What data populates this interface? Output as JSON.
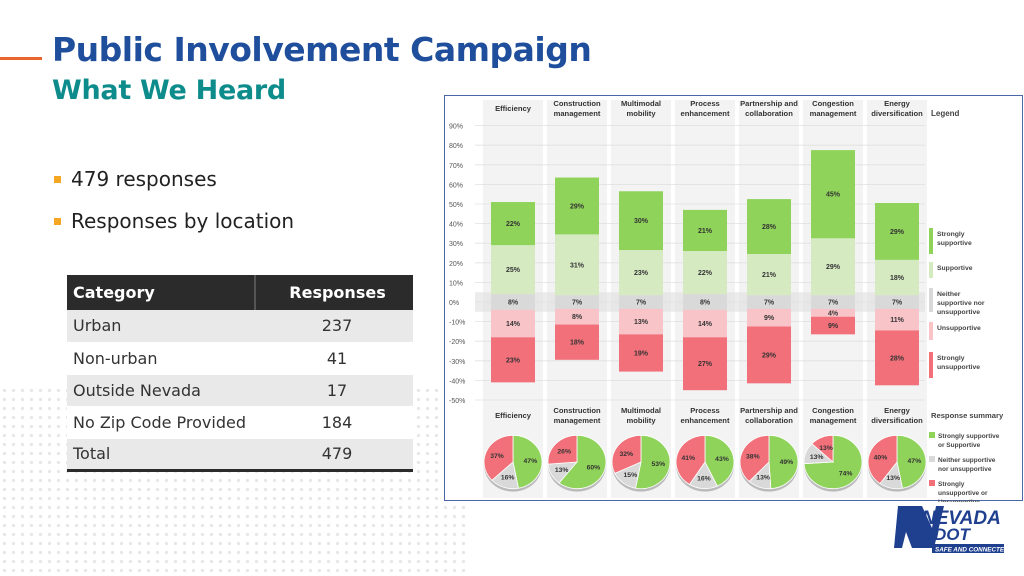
{
  "slide": {
    "title": "Public Involvement Campaign",
    "subtitle": "What We Heard",
    "bullets": [
      "479 responses",
      "Responses by location"
    ]
  },
  "table": {
    "headers": [
      "Category",
      "Responses"
    ],
    "rows": [
      {
        "category": "Urban",
        "responses": "237"
      },
      {
        "category": "Non-urban",
        "responses": "41"
      },
      {
        "category": "Outside Nevada",
        "responses": "17"
      },
      {
        "category": "No Zip Code Provided",
        "responses": "184"
      },
      {
        "category": "Total",
        "responses": "479"
      }
    ]
  },
  "logo": {
    "line1": "NEVADA",
    "line2": "DOT",
    "tagline": "SAFE AND CONNECTED"
  },
  "colors": {
    "title": "#1f4e9c",
    "subtitle": "#0e8c8c",
    "strongly_supportive": "#8fd35a",
    "supportive": "#d6eac2",
    "neither": "#d9d9d9",
    "unsupportive": "#f8c4c8",
    "strongly_unsupportive": "#f2707a"
  },
  "chart_data": [
    {
      "type": "bar",
      "stacked": "diverging",
      "categories": [
        "Efficiency",
        "Construction management",
        "Multimodal mobility",
        "Process enhancement",
        "Partnership and collaboration",
        "Congestion management",
        "Energy diversification"
      ],
      "series": [
        {
          "name": "Strongly supportive",
          "values": [
            22,
            29,
            30,
            21,
            28,
            45,
            29
          ]
        },
        {
          "name": "Supportive",
          "values": [
            25,
            31,
            23,
            22,
            21,
            29,
            18
          ]
        },
        {
          "name": "Neither supportive nor unsupportive",
          "values": [
            8,
            7,
            7,
            8,
            7,
            7,
            7
          ]
        },
        {
          "name": "Unsupportive",
          "values": [
            14,
            8,
            13,
            14,
            9,
            4,
            11
          ]
        },
        {
          "name": "Strongly unsupportive",
          "values": [
            23,
            18,
            19,
            27,
            29,
            9,
            28
          ]
        }
      ],
      "yticks": [
        "90%",
        "80%",
        "70%",
        "60%",
        "50%",
        "40%",
        "30%",
        "20%",
        "10%",
        "0%",
        "-10%",
        "-20%",
        "-30%",
        "-40%",
        "-50%"
      ],
      "ylim": [
        -50,
        90
      ],
      "legend_title": "Legend",
      "legend": [
        "Strongly supportive",
        "Supportive",
        "Neither supportive nor unsupportive",
        "Unsupportive",
        "Strongly unsupportive"
      ]
    },
    {
      "type": "pie",
      "categories": [
        "Efficiency",
        "Construction management",
        "Multimodal mobility",
        "Process enhancement",
        "Partnership and collaboration",
        "Congestion management",
        "Energy diversification"
      ],
      "series": [
        {
          "name": "Strongly supportive or Supportive",
          "values": [
            47,
            60,
            53,
            43,
            49,
            74,
            47
          ]
        },
        {
          "name": "Neither supportive nor unsupportive",
          "values": [
            16,
            13,
            15,
            16,
            13,
            13,
            13
          ]
        },
        {
          "name": "Strongly unsupportive or Unsupportive",
          "values": [
            37,
            26,
            32,
            41,
            38,
            13,
            40
          ]
        }
      ],
      "legend_title": "Response summary",
      "legend": [
        "Strongly supportive or Supportive",
        "Neither supportive nor unsupportive",
        "Strongly unsupportive or Unsupportive"
      ]
    }
  ]
}
